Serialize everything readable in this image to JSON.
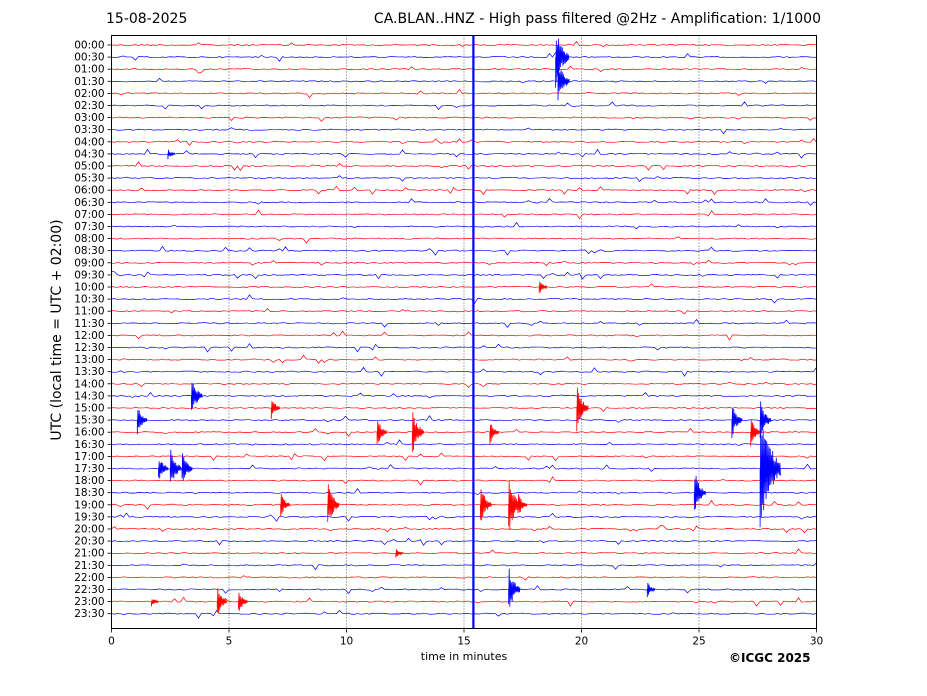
{
  "header": {
    "date": "15-08-2025",
    "title": "CA.BLAN..HNZ - High pass filtered @2Hz - Amplification: 1/1000"
  },
  "footer": {
    "copyright": "©ICGC 2025"
  },
  "chart_data": {
    "type": "line",
    "title": "CA.BLAN..HNZ - High pass filtered @2Hz - Amplification: 1/1000",
    "xlabel": "time in minutes",
    "ylabel": "UTC (local time = UTC + 02:00)",
    "xlim": [
      0,
      30
    ],
    "x_ticks": [
      0,
      5,
      10,
      15,
      20,
      25,
      30
    ],
    "y_categories": [
      "00:00",
      "00:30",
      "01:00",
      "01:30",
      "02:00",
      "02:30",
      "03:00",
      "03:30",
      "04:00",
      "04:30",
      "05:00",
      "05:30",
      "06:00",
      "06:30",
      "07:00",
      "07:30",
      "08:00",
      "08:30",
      "09:00",
      "09:30",
      "10:00",
      "10:30",
      "11:00",
      "11:30",
      "12:00",
      "12:30",
      "13:00",
      "13:30",
      "14:00",
      "14:30",
      "15:00",
      "15:30",
      "16:00",
      "16:30",
      "17:00",
      "17:30",
      "18:00",
      "18:30",
      "19:00",
      "19:30",
      "20:00",
      "20:30",
      "21:00",
      "21:30",
      "22:00",
      "22:30",
      "23:00",
      "23:30"
    ],
    "trace_colors": [
      "#ff0000",
      "#0000ff"
    ],
    "grid": "vertical dotted at each x tick",
    "events": [
      {
        "row": "00:30",
        "x": 18.9,
        "amp": 1.2
      },
      {
        "row": "01:30",
        "x": 19.0,
        "amp": 0.9
      },
      {
        "row": "04:30",
        "x": 2.4,
        "amp": 0.2
      },
      {
        "row": "10:00",
        "x": 18.2,
        "amp": 0.3
      },
      {
        "row": "14:30",
        "x": 3.4,
        "amp": 0.8
      },
      {
        "row": "15:00",
        "x": 6.8,
        "amp": 0.45
      },
      {
        "row": "15:00",
        "x": 19.8,
        "amp": 0.9
      },
      {
        "row": "15:30",
        "x": 1.1,
        "amp": 0.6
      },
      {
        "row": "15:30",
        "x": 26.4,
        "amp": 0.7
      },
      {
        "row": "15:30",
        "x": 27.6,
        "amp": 0.8
      },
      {
        "row": "16:00",
        "x": 11.3,
        "amp": 0.6
      },
      {
        "row": "16:00",
        "x": 12.8,
        "amp": 0.9
      },
      {
        "row": "16:00",
        "x": 16.1,
        "amp": 0.5
      },
      {
        "row": "16:00",
        "x": 27.2,
        "amp": 0.6
      },
      {
        "row": "17:30",
        "x": 2.0,
        "amp": 0.6
      },
      {
        "row": "17:30",
        "x": 2.5,
        "amp": 0.8
      },
      {
        "row": "17:30",
        "x": 3.0,
        "amp": 0.7
      },
      {
        "row": "17:30",
        "x": 27.6,
        "amp": 2.5
      },
      {
        "row": "18:30",
        "x": 24.8,
        "amp": 0.9
      },
      {
        "row": "19:00",
        "x": 7.2,
        "amp": 0.5
      },
      {
        "row": "19:00",
        "x": 9.2,
        "amp": 0.9
      },
      {
        "row": "19:00",
        "x": 15.7,
        "amp": 0.8
      },
      {
        "row": "19:00",
        "x": 16.9,
        "amp": 1.2
      },
      {
        "row": "19:00",
        "x": 17.3,
        "amp": 0.5
      },
      {
        "row": "21:00",
        "x": 12.1,
        "amp": 0.2
      },
      {
        "row": "22:30",
        "x": 16.9,
        "amp": 0.9
      },
      {
        "row": "22:30",
        "x": 22.8,
        "amp": 0.3
      },
      {
        "row": "23:00",
        "x": 1.7,
        "amp": 0.2
      },
      {
        "row": "23:00",
        "x": 4.5,
        "amp": 0.6
      },
      {
        "row": "23:00",
        "x": 5.4,
        "amp": 0.5
      }
    ],
    "persistent_signal": {
      "x": 15.4,
      "color": "#0000ff"
    }
  }
}
